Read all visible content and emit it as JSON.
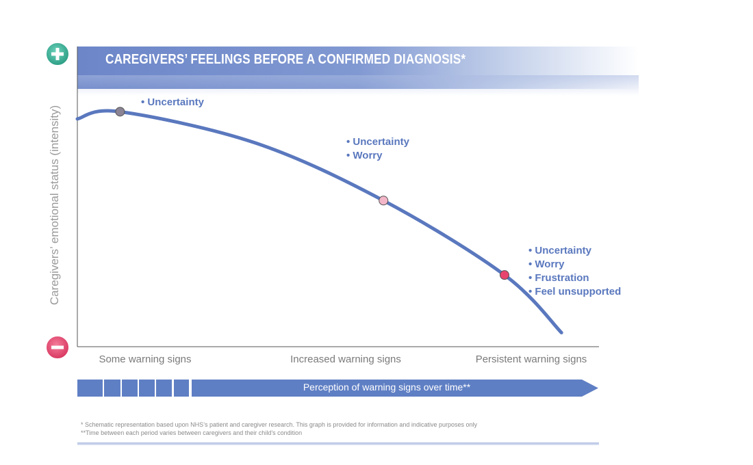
{
  "chart_data": {
    "type": "line",
    "title": "CAREGIVERS’ FEELINGS BEFORE A CONFIRMED DIAGNOSIS*",
    "ylabel": "Caregivers’ emotional status (intensity)",
    "xlabel": "Perception of warning signs over time**",
    "categories": [
      "Some warning signs",
      "Increased warning signs",
      "Persistent warning signs"
    ],
    "axis_ends": {
      "top": "+",
      "bottom": "−"
    },
    "grid": false,
    "series": [
      {
        "values": [
          0.92,
          0.95,
          0.82,
          0.58,
          0.27,
          0.03
        ],
        "x": [
          0,
          0.12,
          0.5,
          0.86,
          1.2,
          1.36
        ]
      }
    ],
    "markers": [
      {
        "category": "Some warning signs",
        "x": 0.12,
        "y": 0.95,
        "color": "#8a8494",
        "feelings": [
          "Uncertainty"
        ]
      },
      {
        "category": "Increased warning signs",
        "x": 0.86,
        "y": 0.58,
        "color": "#f2b6c8",
        "feelings": [
          "Uncertainty",
          "Worry"
        ]
      },
      {
        "category": "Persistent warning signs",
        "x": 1.2,
        "y": 0.27,
        "color": "#e8456e",
        "feelings": [
          "Uncertainty",
          "Worry",
          "Frustration",
          "Feel unsupported"
        ]
      }
    ],
    "colors": {
      "line": "#5a78be",
      "plus_badge": "#3bb39a",
      "minus_badge": "#e8456e",
      "arrow": "#5f7fc4"
    }
  },
  "footnotes": [
    "* Schematic representation based upon NHS’s patient and caregiver research. This graph is provided for information and indicative purposes only",
    "**Time between each period varies between caregivers and their child’s condition"
  ]
}
